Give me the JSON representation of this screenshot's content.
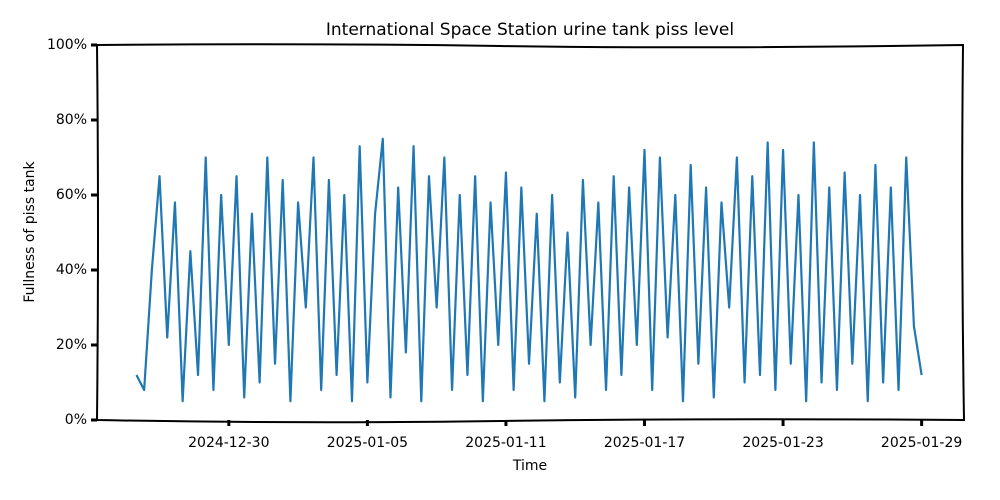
{
  "chart_data": {
    "type": "line",
    "title": "International Space Station urine tank piss level",
    "x_label": "Time",
    "y_label": "Fullness of piss tank",
    "color": "#1f77b4",
    "x": [
      "2024-12-26T00:00",
      "2024-12-26T08:00",
      "2024-12-26T16:00",
      "2024-12-27T00:00",
      "2024-12-27T08:00",
      "2024-12-27T16:00",
      "2024-12-28T00:00",
      "2024-12-28T08:00",
      "2024-12-28T16:00",
      "2024-12-29T00:00",
      "2024-12-29T08:00",
      "2024-12-29T16:00",
      "2024-12-30T00:00",
      "2024-12-30T08:00",
      "2024-12-30T16:00",
      "2024-12-31T00:00",
      "2024-12-31T08:00",
      "2024-12-31T16:00",
      "2025-01-01T00:00",
      "2025-01-01T08:00",
      "2025-01-01T16:00",
      "2025-01-02T00:00",
      "2025-01-02T08:00",
      "2025-01-02T16:00",
      "2025-01-03T00:00",
      "2025-01-03T08:00",
      "2025-01-03T16:00",
      "2025-01-04T00:00",
      "2025-01-04T08:00",
      "2025-01-04T16:00",
      "2025-01-05T00:00",
      "2025-01-05T08:00",
      "2025-01-05T16:00",
      "2025-01-06T00:00",
      "2025-01-06T08:00",
      "2025-01-06T16:00",
      "2025-01-07T00:00",
      "2025-01-07T08:00",
      "2025-01-07T16:00",
      "2025-01-08T00:00",
      "2025-01-08T08:00",
      "2025-01-08T16:00",
      "2025-01-09T00:00",
      "2025-01-09T08:00",
      "2025-01-09T16:00",
      "2025-01-10T00:00",
      "2025-01-10T08:00",
      "2025-01-10T16:00",
      "2025-01-11T00:00",
      "2025-01-11T08:00",
      "2025-01-11T16:00",
      "2025-01-12T00:00",
      "2025-01-12T08:00",
      "2025-01-12T16:00",
      "2025-01-13T00:00",
      "2025-01-13T08:00",
      "2025-01-13T16:00",
      "2025-01-14T00:00",
      "2025-01-14T08:00",
      "2025-01-14T16:00",
      "2025-01-15T00:00",
      "2025-01-15T08:00",
      "2025-01-15T16:00",
      "2025-01-16T00:00",
      "2025-01-16T08:00",
      "2025-01-16T16:00",
      "2025-01-17T00:00",
      "2025-01-17T08:00",
      "2025-01-17T16:00",
      "2025-01-18T00:00",
      "2025-01-18T08:00",
      "2025-01-18T16:00",
      "2025-01-19T00:00",
      "2025-01-19T08:00",
      "2025-01-19T16:00",
      "2025-01-20T00:00",
      "2025-01-20T08:00",
      "2025-01-20T16:00",
      "2025-01-21T00:00",
      "2025-01-21T08:00",
      "2025-01-21T16:00",
      "2025-01-22T00:00",
      "2025-01-22T08:00",
      "2025-01-22T16:00",
      "2025-01-23T00:00",
      "2025-01-23T08:00",
      "2025-01-23T16:00",
      "2025-01-24T00:00",
      "2025-01-24T08:00",
      "2025-01-24T16:00",
      "2025-01-25T00:00",
      "2025-01-25T08:00",
      "2025-01-25T16:00",
      "2025-01-26T00:00",
      "2025-01-26T08:00",
      "2025-01-26T16:00",
      "2025-01-27T00:00",
      "2025-01-27T08:00",
      "2025-01-27T16:00",
      "2025-01-28T00:00",
      "2025-01-28T08:00",
      "2025-01-28T16:00",
      "2025-01-29T00:00"
    ],
    "values": [
      12,
      8,
      40,
      65,
      22,
      58,
      5,
      45,
      12,
      70,
      8,
      60,
      20,
      65,
      6,
      55,
      10,
      70,
      15,
      64,
      5,
      58,
      30,
      70,
      8,
      64,
      12,
      60,
      5,
      73,
      10,
      55,
      75,
      6,
      62,
      18,
      73,
      5,
      65,
      30,
      70,
      8,
      60,
      12,
      65,
      5,
      58,
      20,
      66,
      8,
      62,
      15,
      55,
      5,
      60,
      10,
      50,
      6,
      64,
      20,
      58,
      8,
      65,
      12,
      62,
      20,
      72,
      8,
      70,
      22,
      60,
      5,
      68,
      15,
      62,
      6,
      58,
      30,
      70,
      10,
      65,
      12,
      74,
      8,
      72,
      15,
      60,
      5,
      74,
      10,
      62,
      8,
      66,
      15,
      60,
      5,
      68,
      10,
      62,
      8,
      70,
      25,
      12
    ],
    "xlim": [
      "2024-12-24T07:00",
      "2025-01-30T19:00"
    ],
    "xticks": [
      "2024-12-30",
      "2025-01-05",
      "2025-01-11",
      "2025-01-17",
      "2025-01-23",
      "2025-01-29"
    ],
    "ylim": [
      0,
      100
    ],
    "yticks": [
      {
        "value": 0,
        "label": "0%"
      },
      {
        "value": 20,
        "label": "20%"
      },
      {
        "value": 40,
        "label": "40%"
      },
      {
        "value": 60,
        "label": "60%"
      },
      {
        "value": 80,
        "label": "80%"
      },
      {
        "value": 100,
        "label": "100%"
      }
    ]
  }
}
